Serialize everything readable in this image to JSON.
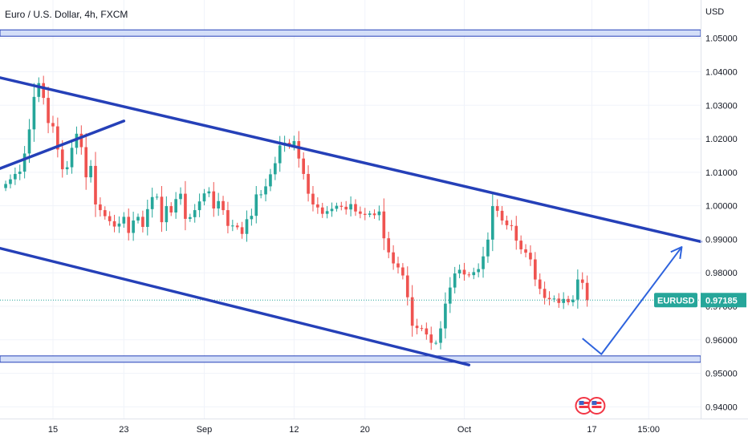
{
  "chart_data": {
    "type": "candlestick",
    "title": "Euro / U.S. Dollar, 4h, FXCM",
    "currency_label": "USD",
    "symbol": "EURUSD",
    "last_price": "0.97185",
    "last_price_value": 0.97185,
    "y_ticks": [
      "1.05000",
      "1.04000",
      "1.03000",
      "1.02000",
      "1.01000",
      "1.00000",
      "0.99000",
      "0.98000",
      "0.97000",
      "0.96000",
      "0.95000",
      "0.94000"
    ],
    "y_tick_values": [
      1.05,
      1.04,
      1.03,
      1.02,
      1.01,
      1.0,
      0.99,
      0.98,
      0.97,
      0.96,
      0.95,
      0.94
    ],
    "ylim": [
      0.9365,
      1.0595
    ],
    "x_ticks": [
      "15",
      "23",
      "Sep",
      "12",
      "20",
      "Oct",
      "17",
      "15:00"
    ],
    "x_tick_index": [
      10,
      25,
      42,
      61,
      76,
      97,
      124,
      136
    ],
    "xlim": [
      -1.2,
      147
    ],
    "grid": true,
    "closes": [
      1.0065,
      1.0079,
      1.0095,
      1.0102,
      1.0156,
      1.0228,
      1.0325,
      1.0366,
      1.0322,
      1.0247,
      1.0237,
      1.0168,
      1.0109,
      1.0115,
      1.0173,
      1.0215,
      1.0175,
      1.0085,
      1.0119,
      1.0004,
      0.9987,
      0.9969,
      0.9954,
      0.9938,
      0.9947,
      0.9967,
      0.9919,
      0.9956,
      0.9967,
      0.9937,
      0.999,
      1.0026,
      1.0027,
      0.9951,
      0.9999,
      0.998,
      1.002,
      1.0036,
      0.9961,
      0.9966,
      0.9987,
      1.0013,
      1.0037,
      1.0043,
      0.9992,
      1.0014,
      0.9987,
      0.994,
      0.9941,
      0.9936,
      0.9916,
      0.996,
      0.997,
      1.0034,
      1.0034,
      1.0058,
      1.0094,
      1.0127,
      1.018,
      1.0188,
      1.018,
      1.0193,
      1.0141,
      1.0095,
      1.0036,
      1.0004,
      0.9995,
      0.9976,
      0.9984,
      0.9991,
      1.0,
      0.9997,
      0.9989,
      1.0005,
      0.9983,
      0.9976,
      0.9973,
      0.9977,
      0.9972,
      0.9983,
      0.9903,
      0.9861,
      0.9828,
      0.9816,
      0.9792,
      0.9727,
      0.9642,
      0.9635,
      0.9634,
      0.9616,
      0.9591,
      0.9591,
      0.9634,
      0.9708,
      0.9756,
      0.9798,
      0.9809,
      0.9795,
      0.9793,
      0.9802,
      0.9811,
      0.9849,
      0.9899,
      0.9999,
      0.9985,
      0.9956,
      0.9942,
      0.994,
      0.9896,
      0.987,
      0.986,
      0.984,
      0.978,
      0.9752,
      0.9725,
      0.9721,
      0.9723,
      0.971,
      0.9722,
      0.9712,
      0.972,
      0.978,
      0.977,
      0.97185
    ],
    "drawings": {
      "channel_upper": [
        [
          -2,
          1.0385
        ],
        [
          147,
          0.9893
        ]
      ],
      "channel_lower": [
        [
          -2,
          0.9876
        ],
        [
          98,
          0.9525
        ]
      ],
      "wedge_line": [
        [
          -2,
          1.0107
        ],
        [
          25,
          1.0253
        ]
      ],
      "support_zone": [
        0.9533,
        0.9552
      ],
      "resistance_zone": [
        1.0506,
        1.0525
      ],
      "projection_arrow": [
        [
          122,
          0.9604
        ],
        [
          126,
          0.9557
        ],
        [
          143,
          0.9877
        ]
      ]
    },
    "colors": {
      "up": "#26a69a",
      "down": "#ef5350",
      "channel": "#2540b8",
      "arrow": "#2e63dd",
      "zone_fill": "#cbd8f7",
      "zone_stroke": "#2540b8",
      "price_tag": "#26a69a",
      "emblem": "#f23645"
    }
  }
}
